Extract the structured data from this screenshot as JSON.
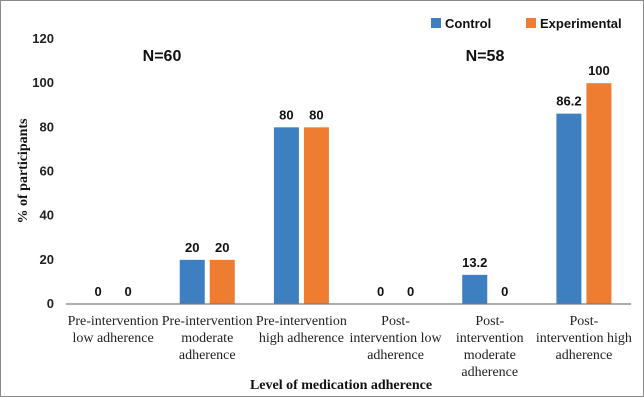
{
  "chart_data": {
    "type": "bar",
    "categories": [
      [
        "Pre-intervention",
        "low adherence"
      ],
      [
        "Pre-intervention",
        "moderate",
        "adherence"
      ],
      [
        "Pre-intervention",
        "high adherence"
      ],
      [
        "Post-",
        "intervention low",
        "adherence"
      ],
      [
        "Post-",
        "intervention",
        "moderate",
        "adherence"
      ],
      [
        "Post-",
        "intervention high",
        "adherence"
      ]
    ],
    "series": [
      {
        "name": "Control",
        "color": "#3d7fc1",
        "values": [
          0,
          20,
          80,
          0,
          13.2,
          86.2
        ],
        "labels": [
          "0",
          "20",
          "80",
          "0",
          "13.2",
          "86.2"
        ]
      },
      {
        "name": "Experimental",
        "color": "#ee7d31",
        "values": [
          0,
          20,
          80,
          0,
          0,
          100
        ],
        "labels": [
          "0",
          "20",
          "80",
          "0",
          "0",
          "100"
        ]
      }
    ],
    "title": "",
    "xlabel": "Level of medication adherence",
    "ylabel": "% of participants",
    "ylim": [
      0,
      120
    ],
    "yticks": [
      0,
      20,
      40,
      60,
      80,
      100,
      120
    ],
    "grid": false,
    "legend_position": "top-right",
    "annotations": [
      "N=60",
      "N=58"
    ]
  }
}
